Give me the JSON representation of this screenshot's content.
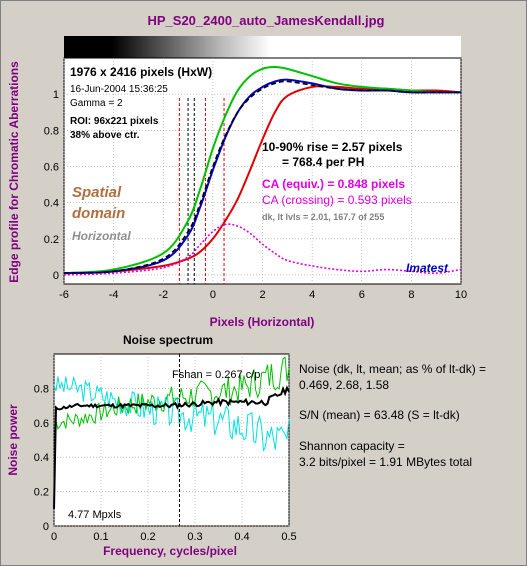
{
  "title": "HP_S20_2400_auto_JamesKendall.jpg",
  "edge_info": {
    "size": "1976 x 2416 pixels (HxW)",
    "date": "16-Jun-2004 15:36:25",
    "gamma": "Gamma = 2",
    "roi": "ROI: 96x221 pixels",
    "above": "38% above ctr."
  },
  "edge_annotations": {
    "rise1": "10-90% rise = 2.57 pixels",
    "rise2": "= 768.4 per PH",
    "ca_equiv": "CA (equiv.) = 0.848 pixels",
    "ca_cross": "CA (crossing) = 0.593 pixels",
    "dk_lt": "dk, lt lvls = 2.01, 167.7 of 255",
    "spatial1": "Spatial",
    "spatial2": "domain",
    "horizontal": "Horizontal",
    "imatest": "Imatest"
  },
  "noise_info": {
    "line1": "Noise (dk, lt, mean; as % of lt-dk) =",
    "line2": "0.469,  2.68,  1.58",
    "line3": "S/N (mean) = 63.48  (S = lt-dk)",
    "line4": "Shannon capacity =",
    "line5": "3.2 bits/pixel = 1.91 MBytes total",
    "fshan": "Fshan = 0.267 c/p",
    "mpxls": "4.77 Mpxls"
  },
  "colors": {
    "red": "#e00000",
    "green": "#00c000",
    "blue": "#0000c0",
    "black": "#000000",
    "magenta": "#e000e0",
    "cyan": "#00e0e0",
    "title": "#800080",
    "brown": "#b07040"
  },
  "chart_data": [
    {
      "type": "line",
      "xlabel": "Pixels (Horizontal)",
      "ylabel": "Edge profile for Chromatic Aberrations",
      "xlim": [
        -6,
        10
      ],
      "ylim": [
        -0.05,
        1.2
      ],
      "xticks": [
        -6,
        -4,
        -2,
        0,
        2,
        4,
        6,
        8,
        10
      ],
      "yticks": [
        0,
        0.2,
        0.4,
        0.6,
        0.8,
        1
      ],
      "grid": true,
      "series": [
        {
          "color": "red",
          "style": "solid",
          "x": [
            -6,
            -4,
            -2,
            -1,
            -0.5,
            0,
            0.5,
            1,
            1.5,
            2,
            2.5,
            3,
            4,
            5,
            6,
            7,
            8,
            9,
            10
          ],
          "y": [
            0.01,
            0.02,
            0.05,
            0.09,
            0.13,
            0.2,
            0.3,
            0.42,
            0.58,
            0.75,
            0.9,
            0.99,
            1.04,
            1.04,
            1.03,
            1.03,
            1.02,
            1.02,
            1.01
          ]
        },
        {
          "color": "green",
          "style": "solid",
          "x": [
            -6,
            -4,
            -2,
            -1,
            -0.5,
            0,
            0.5,
            1,
            1.5,
            2,
            2.5,
            3,
            4,
            5,
            6,
            7,
            8,
            9,
            10
          ],
          "y": [
            0.01,
            0.03,
            0.12,
            0.3,
            0.48,
            0.7,
            0.88,
            1.02,
            1.1,
            1.14,
            1.15,
            1.14,
            1.1,
            1.06,
            1.04,
            1.03,
            1.02,
            1.01,
            1.01
          ]
        },
        {
          "color": "blue",
          "style": "solid",
          "x": [
            -6,
            -4,
            -2,
            -1,
            -0.5,
            0,
            0.5,
            1,
            1.5,
            2,
            2.5,
            3,
            4,
            5,
            6,
            7,
            8,
            9,
            10
          ],
          "y": [
            0.01,
            0.02,
            0.08,
            0.22,
            0.38,
            0.58,
            0.76,
            0.9,
            0.99,
            1.04,
            1.07,
            1.08,
            1.06,
            1.03,
            1.02,
            1.02,
            1.01,
            1.01,
            1.01
          ]
        },
        {
          "color": "black",
          "style": "dashed",
          "x": [
            -6,
            -4,
            -2,
            -1,
            -0.5,
            0,
            0.5,
            1,
            1.5,
            2,
            2.5,
            3,
            4,
            5,
            6,
            7,
            8,
            9,
            10
          ],
          "y": [
            0.01,
            0.02,
            0.09,
            0.24,
            0.4,
            0.6,
            0.77,
            0.9,
            0.98,
            1.03,
            1.06,
            1.07,
            1.05,
            1.03,
            1.02,
            1.02,
            1.01,
            1.01,
            1.01
          ]
        },
        {
          "color": "magenta",
          "style": "dotted",
          "x": [
            -6,
            -4,
            -2,
            -1,
            -0.5,
            0,
            0.5,
            1,
            1.5,
            2,
            2.5,
            3,
            4,
            5,
            6,
            7,
            8,
            9,
            10
          ],
          "y": [
            0.0,
            0.01,
            0.04,
            0.1,
            0.17,
            0.24,
            0.28,
            0.27,
            0.23,
            0.17,
            0.12,
            0.08,
            0.05,
            0.03,
            0.02,
            0.03,
            0.02,
            0.01,
            0.03
          ]
        }
      ],
      "vlines": [
        {
          "x": -1.35,
          "color": "red"
        },
        {
          "x": -0.3,
          "color": "red"
        },
        {
          "x": 0.45,
          "color": "red"
        },
        {
          "x": -0.75,
          "color": "black"
        },
        {
          "x": -1.0,
          "color": "black"
        }
      ]
    },
    {
      "type": "line",
      "title": "Noise spectrum",
      "xlabel": "Frequency, cycles/pixel",
      "ylabel": "Noise power",
      "xlim": [
        0,
        0.5
      ],
      "ylim": [
        0,
        1.0
      ],
      "xticks": [
        0,
        0.1,
        0.2,
        0.3,
        0.4,
        0.5
      ],
      "yticks": [
        0,
        0.2,
        0.4,
        0.6,
        0.8
      ],
      "grid": true,
      "series": [
        {
          "color": "cyan",
          "style": "solid",
          "base": [
            0.82,
            0.8,
            0.76,
            0.72,
            0.68,
            0.66,
            0.64,
            0.62,
            0.58,
            0.52,
            0.5
          ],
          "amp": 0.1,
          "seed": 3
        },
        {
          "color": "green",
          "style": "solid",
          "base": [
            0.6,
            0.62,
            0.66,
            0.7,
            0.72,
            0.74,
            0.76,
            0.78,
            0.8,
            0.86,
            0.92
          ],
          "amp": 0.08,
          "seed": 7
        },
        {
          "color": "black",
          "style": "solid",
          "base": [
            0.68,
            0.7,
            0.7,
            0.7,
            0.7,
            0.7,
            0.71,
            0.72,
            0.72,
            0.72,
            0.8
          ],
          "amp": 0.015,
          "seed": 11
        }
      ],
      "vline": {
        "x": 0.267,
        "color": "black"
      }
    }
  ]
}
